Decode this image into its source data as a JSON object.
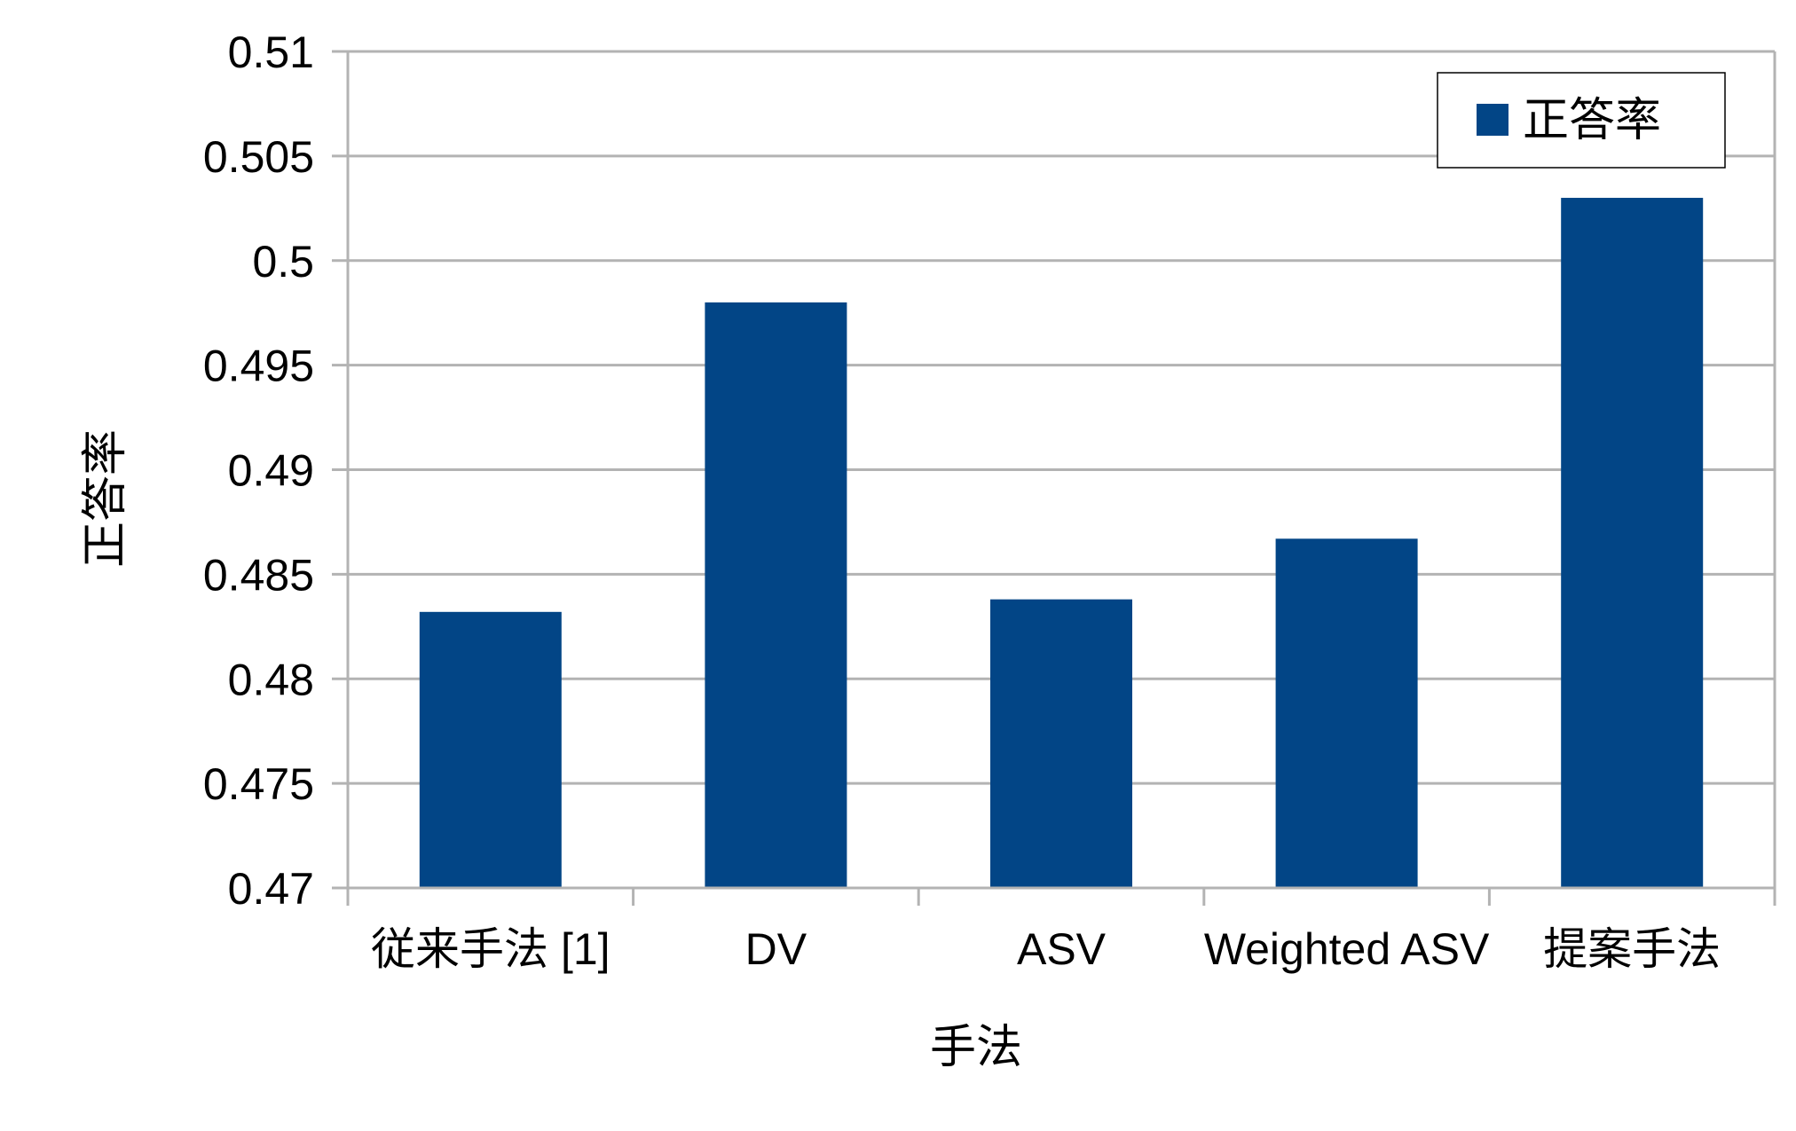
{
  "chart_data": {
    "type": "bar",
    "title": "",
    "xlabel": "手法",
    "ylabel": "正答率",
    "categories": [
      "従来手法 [1]",
      "DV",
      "ASV",
      "Weighted ASV",
      "提案手法"
    ],
    "series": [
      {
        "name": "正答率",
        "color": "#024586",
        "values": [
          0.4832,
          0.498,
          0.4838,
          0.4867,
          0.503
        ]
      }
    ],
    "ylim": [
      0.47,
      0.51
    ],
    "yticks": [
      "0.47",
      "0.475",
      "0.48",
      "0.485",
      "0.49",
      "0.495",
      "0.5",
      "0.505",
      "0.51"
    ],
    "grid": true,
    "legend": "top-right"
  }
}
